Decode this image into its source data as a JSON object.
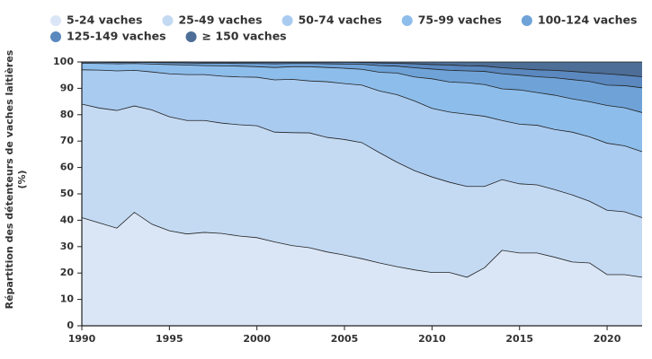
{
  "chart_data": {
    "type": "stacked_area",
    "y_label": "Répartition des détenteurs de vaches laitières (%)",
    "x": [
      1990,
      1991,
      1992,
      1993,
      1994,
      1995,
      1996,
      1997,
      1998,
      1999,
      2000,
      2001,
      2002,
      2003,
      2004,
      2005,
      2006,
      2007,
      2008,
      2009,
      2010,
      2011,
      2012,
      2013,
      2014,
      2015,
      2016,
      2017,
      2018,
      2019,
      2020,
      2021,
      2022
    ],
    "xlim": [
      1990,
      2022
    ],
    "xticks": [
      1990,
      1995,
      2000,
      2005,
      2010,
      2015,
      2020
    ],
    "ylim": [
      0,
      100
    ],
    "yticks": [
      0,
      10,
      20,
      30,
      40,
      50,
      60,
      70,
      80,
      90,
      100
    ],
    "series": [
      {
        "name": "5-24 vaches",
        "color": "#dae6f6",
        "values": [
          41,
          39,
          37,
          43,
          38.5,
          36,
          34.8,
          35.4,
          35,
          34,
          33.4,
          31.8,
          30.4,
          29.6,
          28,
          26.8,
          25.4,
          23.8,
          22.4,
          21.2,
          20.2,
          20.2,
          18.4,
          22,
          28.6,
          27.6,
          27.6,
          26,
          24.2,
          23.8,
          19.4,
          19.4,
          18.4
        ]
      },
      {
        "name": "25-49 vaches",
        "color": "#c4daf3",
        "values": [
          43,
          43.5,
          44.6,
          40.3,
          43.3,
          43.2,
          43,
          42.4,
          41.8,
          42.2,
          42.4,
          41.6,
          42.8,
          43.5,
          43.4,
          43.8,
          44,
          41.8,
          39.6,
          37.6,
          36.2,
          34.2,
          34.4,
          30.8,
          26.8,
          26.2,
          25.8,
          25.6,
          25.4,
          23.4,
          24.4,
          23.8,
          22.6
        ]
      },
      {
        "name": "50-74 vaches",
        "color": "#aacbf0",
        "values": [
          13,
          14.4,
          15,
          13.5,
          14.4,
          16.3,
          17.4,
          17.4,
          17.8,
          18.1,
          18.4,
          19.8,
          20.2,
          19.7,
          21.1,
          21.2,
          21.8,
          23.4,
          25.6,
          26.4,
          26,
          26.6,
          27.4,
          26.6,
          22.4,
          22.6,
          22.6,
          22.8,
          23.8,
          24.4,
          25.4,
          25,
          25
        ]
      },
      {
        "name": "75-99 vaches",
        "color": "#8dbdeb",
        "values": [
          2.5,
          2.5,
          2.7,
          2.6,
          3,
          3.5,
          3.6,
          3.4,
          3.9,
          4.1,
          4,
          4.7,
          4.8,
          5.4,
          5.4,
          5.8,
          6,
          7.1,
          8.2,
          9.1,
          11.2,
          11.4,
          11.9,
          12,
          12,
          13,
          12.4,
          13,
          12.6,
          13.3,
          14.3,
          14.4,
          14.8
        ]
      },
      {
        "name": "100-124 vaches",
        "color": "#6fa3d8",
        "values": [
          0.4,
          0.5,
          0.5,
          0.5,
          0.6,
          0.7,
          0.8,
          0.9,
          1,
          1,
          1.2,
          1.4,
          1.2,
          1.2,
          1.4,
          1.6,
          1.9,
          2.5,
          2.6,
          3.5,
          3.7,
          4.4,
          4.5,
          5,
          5.7,
          5.6,
          6,
          6.6,
          7.3,
          7.7,
          7.7,
          8.4,
          9.4
        ]
      },
      {
        "name": "125-149 vaches",
        "color": "#5a88bf",
        "values": [
          0.1,
          0.1,
          0.2,
          0.1,
          0.2,
          0.3,
          0.4,
          0.4,
          0.4,
          0.5,
          0.5,
          0.6,
          0.5,
          0.5,
          0.6,
          0.7,
          0.7,
          1,
          1.1,
          1.5,
          1.7,
          2,
          1.9,
          2,
          2.3,
          2.4,
          2.6,
          2.8,
          3.1,
          3.3,
          4.3,
          4,
          4.2
        ]
      },
      {
        "name": "≥ 150 vaches",
        "color": "#4d6e96",
        "values": [
          0,
          0,
          0,
          0,
          0,
          0,
          0,
          0.1,
          0.1,
          0.1,
          0.1,
          0.1,
          0.1,
          0.1,
          0.1,
          0.1,
          0.2,
          0.4,
          0.5,
          0.7,
          1,
          1.2,
          1.5,
          1.6,
          2.2,
          2.6,
          3,
          3.2,
          3.6,
          4.1,
          4.5,
          5,
          5.6
        ]
      }
    ]
  }
}
